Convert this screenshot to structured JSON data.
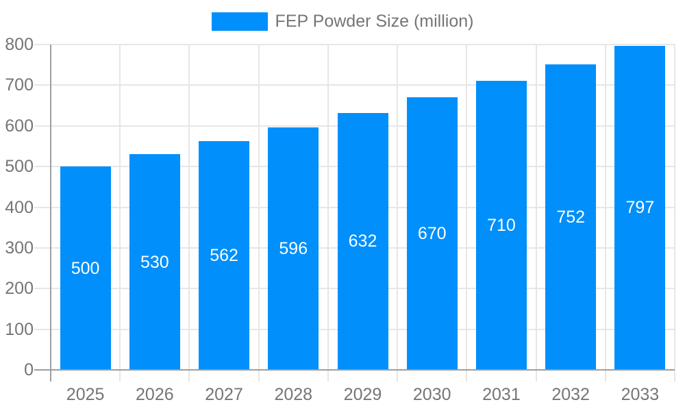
{
  "legend": {
    "label": "FEP Powder Size (million)"
  },
  "chart_data": {
    "type": "bar",
    "title": "FEP Powder Size (million)",
    "categories": [
      "2025",
      "2026",
      "2027",
      "2028",
      "2029",
      "2030",
      "2031",
      "2032",
      "2033"
    ],
    "series": [
      {
        "name": "FEP Powder Size (million)",
        "values": [
          500,
          530,
          562,
          596,
          632,
          670,
          710,
          752,
          797
        ]
      }
    ],
    "xlabel": "",
    "ylabel": "",
    "ylim": [
      0,
      800
    ],
    "yticks": [
      0,
      100,
      200,
      300,
      400,
      500,
      600,
      700,
      800
    ],
    "grid": true,
    "legend_position": "top",
    "bar_labels_inside": true
  },
  "colors": {
    "bar": "#008ffb",
    "grid": "#e6e6e6",
    "axis": "#9e9e9e",
    "tick_text": "#757575",
    "bar_label": "#ffffff",
    "background": "#ffffff"
  }
}
